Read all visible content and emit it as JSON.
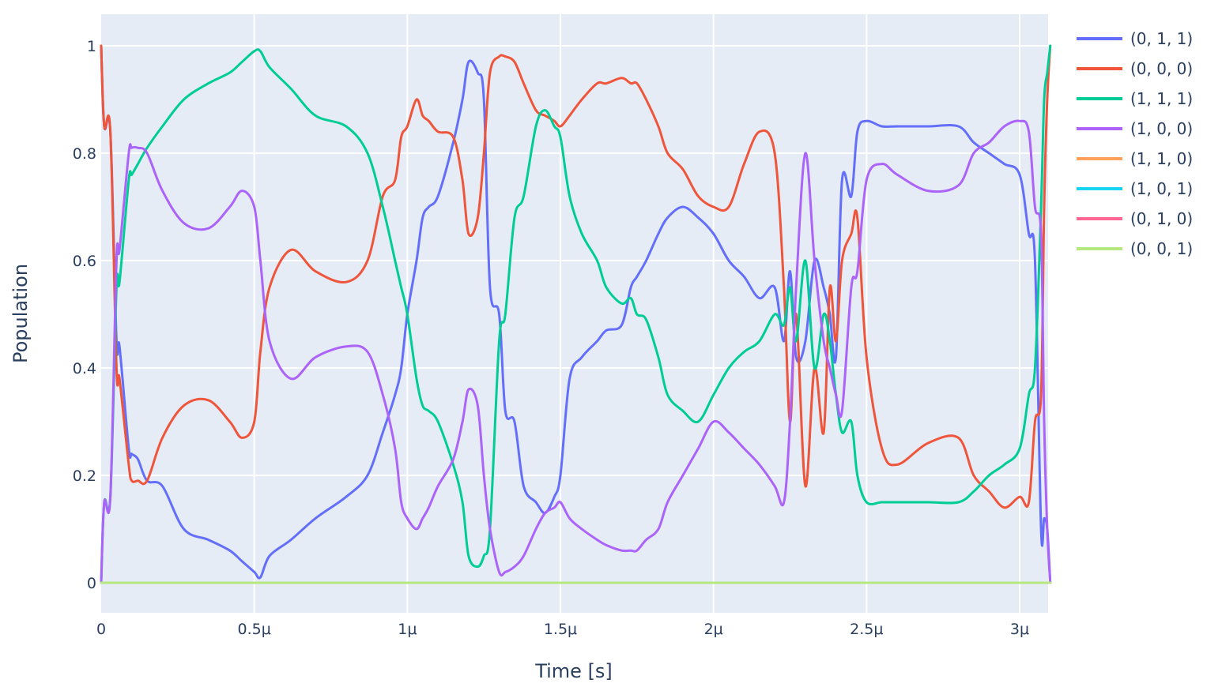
{
  "chart_data": {
    "type": "line",
    "xlabel": "Time [s]",
    "ylabel": "Population",
    "xlim": [
      0,
      3.1e-06
    ],
    "ylim": [
      -0.055,
      1.05
    ],
    "x_ticks": [
      {
        "value": 0,
        "label": "0"
      },
      {
        "value": 5e-07,
        "label": "0.5μ"
      },
      {
        "value": 1e-06,
        "label": "1μ"
      },
      {
        "value": 1.5e-06,
        "label": "1.5μ"
      },
      {
        "value": 2e-06,
        "label": "2μ"
      },
      {
        "value": 2.5e-06,
        "label": "2.5μ"
      },
      {
        "value": 3e-06,
        "label": "3μ"
      }
    ],
    "y_ticks": [
      {
        "value": 0,
        "label": "0"
      },
      {
        "value": 0.2,
        "label": "0.2"
      },
      {
        "value": 0.4,
        "label": "0.4"
      },
      {
        "value": 0.6,
        "label": "0.6"
      },
      {
        "value": 0.8,
        "label": "0.8"
      },
      {
        "value": 1,
        "label": "1"
      }
    ],
    "grid": true,
    "legend_position": "right",
    "series": [
      {
        "name": "(0, 1, 1)",
        "color": "#636efa",
        "x_us": [
          0,
          0.01,
          0.03,
          0.05,
          0.06,
          0.09,
          0.1,
          0.12,
          0.15,
          0.2,
          0.27,
          0.35,
          0.42,
          0.46,
          0.5,
          0.52,
          0.55,
          0.62,
          0.7,
          0.8,
          0.87,
          0.92,
          0.96,
          0.98,
          1.0,
          1.03,
          1.05,
          1.07,
          1.1,
          1.15,
          1.18,
          1.2,
          1.23,
          1.25,
          1.27,
          1.3,
          1.32,
          1.35,
          1.38,
          1.42,
          1.45,
          1.48,
          1.5,
          1.53,
          1.57,
          1.62,
          1.65,
          1.7,
          1.73,
          1.75,
          1.78,
          1.82,
          1.85,
          1.9,
          1.95,
          2.0,
          2.05,
          2.1,
          2.15,
          2.2,
          2.23,
          2.25,
          2.27,
          2.3,
          2.33,
          2.36,
          2.38,
          2.4,
          2.42,
          2.45,
          2.47,
          2.5,
          2.55,
          2.6,
          2.7,
          2.8,
          2.85,
          2.9,
          2.95,
          3.0,
          3.03,
          3.05,
          3.07,
          3.08,
          3.09,
          3.1
        ],
        "y": [
          1.0,
          0.85,
          0.84,
          0.45,
          0.44,
          0.25,
          0.24,
          0.23,
          0.19,
          0.18,
          0.1,
          0.08,
          0.06,
          0.04,
          0.02,
          0.01,
          0.05,
          0.08,
          0.12,
          0.16,
          0.2,
          0.28,
          0.35,
          0.4,
          0.5,
          0.6,
          0.68,
          0.7,
          0.72,
          0.82,
          0.9,
          0.97,
          0.95,
          0.9,
          0.55,
          0.5,
          0.32,
          0.3,
          0.18,
          0.15,
          0.13,
          0.16,
          0.2,
          0.38,
          0.42,
          0.45,
          0.47,
          0.48,
          0.55,
          0.57,
          0.6,
          0.65,
          0.68,
          0.7,
          0.68,
          0.65,
          0.6,
          0.57,
          0.53,
          0.55,
          0.45,
          0.58,
          0.42,
          0.45,
          0.6,
          0.55,
          0.5,
          0.42,
          0.75,
          0.72,
          0.84,
          0.86,
          0.85,
          0.85,
          0.85,
          0.85,
          0.82,
          0.8,
          0.78,
          0.76,
          0.65,
          0.6,
          0.1,
          0.12,
          0.1,
          0.0
        ]
      },
      {
        "name": "(0, 0, 0)",
        "color": "#ef553b",
        "x_us": [
          0,
          0.01,
          0.03,
          0.05,
          0.06,
          0.09,
          0.1,
          0.12,
          0.15,
          0.2,
          0.27,
          0.35,
          0.42,
          0.46,
          0.5,
          0.52,
          0.55,
          0.62,
          0.7,
          0.8,
          0.87,
          0.92,
          0.96,
          0.98,
          1.0,
          1.03,
          1.05,
          1.07,
          1.1,
          1.15,
          1.18,
          1.2,
          1.23,
          1.25,
          1.27,
          1.3,
          1.32,
          1.35,
          1.38,
          1.42,
          1.45,
          1.48,
          1.5,
          1.53,
          1.57,
          1.62,
          1.65,
          1.7,
          1.73,
          1.75,
          1.78,
          1.82,
          1.85,
          1.9,
          1.95,
          2.0,
          2.05,
          2.1,
          2.15,
          2.2,
          2.23,
          2.25,
          2.27,
          2.3,
          2.33,
          2.36,
          2.38,
          2.4,
          2.42,
          2.45,
          2.47,
          2.5,
          2.55,
          2.6,
          2.7,
          2.8,
          2.85,
          2.9,
          2.95,
          3.0,
          3.03,
          3.05,
          3.07,
          3.08,
          3.09,
          3.1
        ],
        "y": [
          1.0,
          0.85,
          0.84,
          0.4,
          0.38,
          0.22,
          0.19,
          0.19,
          0.19,
          0.27,
          0.33,
          0.34,
          0.3,
          0.27,
          0.3,
          0.43,
          0.55,
          0.62,
          0.58,
          0.56,
          0.6,
          0.72,
          0.75,
          0.83,
          0.85,
          0.9,
          0.87,
          0.86,
          0.84,
          0.83,
          0.75,
          0.65,
          0.68,
          0.8,
          0.95,
          0.98,
          0.98,
          0.97,
          0.93,
          0.88,
          0.87,
          0.86,
          0.85,
          0.87,
          0.9,
          0.93,
          0.93,
          0.94,
          0.93,
          0.93,
          0.9,
          0.85,
          0.8,
          0.77,
          0.72,
          0.7,
          0.7,
          0.78,
          0.84,
          0.8,
          0.55,
          0.3,
          0.5,
          0.18,
          0.4,
          0.28,
          0.55,
          0.45,
          0.6,
          0.65,
          0.68,
          0.42,
          0.25,
          0.22,
          0.26,
          0.27,
          0.2,
          0.17,
          0.14,
          0.16,
          0.15,
          0.3,
          0.35,
          0.7,
          0.9,
          1.0
        ]
      },
      {
        "name": "(1, 1, 1)",
        "color": "#00cc96",
        "x_us": [
          0,
          0.01,
          0.03,
          0.05,
          0.06,
          0.09,
          0.1,
          0.12,
          0.15,
          0.2,
          0.27,
          0.35,
          0.42,
          0.46,
          0.5,
          0.52,
          0.55,
          0.62,
          0.7,
          0.8,
          0.87,
          0.92,
          0.96,
          0.98,
          1.0,
          1.03,
          1.05,
          1.07,
          1.1,
          1.15,
          1.18,
          1.2,
          1.23,
          1.25,
          1.27,
          1.3,
          1.32,
          1.35,
          1.38,
          1.42,
          1.45,
          1.48,
          1.5,
          1.53,
          1.57,
          1.62,
          1.65,
          1.7,
          1.73,
          1.75,
          1.78,
          1.82,
          1.85,
          1.9,
          1.95,
          2.0,
          2.05,
          2.1,
          2.15,
          2.2,
          2.23,
          2.25,
          2.27,
          2.3,
          2.33,
          2.36,
          2.38,
          2.4,
          2.42,
          2.45,
          2.47,
          2.5,
          2.55,
          2.6,
          2.7,
          2.8,
          2.85,
          2.9,
          2.95,
          3.0,
          3.03,
          3.05,
          3.07,
          3.08,
          3.09,
          3.1
        ],
        "y": [
          0.0,
          0.15,
          0.16,
          0.55,
          0.56,
          0.75,
          0.76,
          0.78,
          0.81,
          0.85,
          0.9,
          0.93,
          0.95,
          0.97,
          0.99,
          0.99,
          0.96,
          0.92,
          0.87,
          0.85,
          0.8,
          0.7,
          0.6,
          0.55,
          0.5,
          0.38,
          0.33,
          0.32,
          0.3,
          0.22,
          0.15,
          0.05,
          0.03,
          0.05,
          0.1,
          0.45,
          0.5,
          0.68,
          0.72,
          0.85,
          0.88,
          0.85,
          0.83,
          0.72,
          0.65,
          0.6,
          0.55,
          0.52,
          0.53,
          0.5,
          0.49,
          0.42,
          0.35,
          0.32,
          0.3,
          0.35,
          0.4,
          0.43,
          0.45,
          0.5,
          0.48,
          0.55,
          0.45,
          0.6,
          0.4,
          0.5,
          0.45,
          0.35,
          0.28,
          0.3,
          0.2,
          0.15,
          0.15,
          0.15,
          0.15,
          0.15,
          0.17,
          0.2,
          0.22,
          0.25,
          0.35,
          0.4,
          0.7,
          0.9,
          0.95,
          1.0
        ]
      },
      {
        "name": "(1, 0, 0)",
        "color": "#ab63fa",
        "x_us": [
          0,
          0.01,
          0.03,
          0.05,
          0.06,
          0.09,
          0.1,
          0.12,
          0.15,
          0.2,
          0.27,
          0.35,
          0.42,
          0.46,
          0.5,
          0.52,
          0.55,
          0.62,
          0.7,
          0.8,
          0.87,
          0.92,
          0.96,
          0.98,
          1.0,
          1.03,
          1.05,
          1.07,
          1.1,
          1.15,
          1.18,
          1.2,
          1.23,
          1.25,
          1.27,
          1.3,
          1.32,
          1.35,
          1.38,
          1.42,
          1.45,
          1.48,
          1.5,
          1.53,
          1.57,
          1.62,
          1.65,
          1.7,
          1.73,
          1.75,
          1.78,
          1.82,
          1.85,
          1.9,
          1.95,
          2.0,
          2.05,
          2.1,
          2.15,
          2.2,
          2.23,
          2.25,
          2.27,
          2.3,
          2.33,
          2.36,
          2.38,
          2.4,
          2.42,
          2.45,
          2.47,
          2.5,
          2.55,
          2.6,
          2.7,
          2.8,
          2.85,
          2.9,
          2.95,
          3.0,
          3.03,
          3.05,
          3.07,
          3.08,
          3.09,
          3.1
        ],
        "y": [
          0.0,
          0.15,
          0.16,
          0.6,
          0.62,
          0.8,
          0.81,
          0.81,
          0.8,
          0.73,
          0.67,
          0.66,
          0.7,
          0.73,
          0.7,
          0.6,
          0.45,
          0.38,
          0.42,
          0.44,
          0.43,
          0.35,
          0.25,
          0.15,
          0.12,
          0.1,
          0.12,
          0.14,
          0.18,
          0.23,
          0.3,
          0.36,
          0.33,
          0.2,
          0.1,
          0.02,
          0.02,
          0.03,
          0.05,
          0.1,
          0.13,
          0.14,
          0.15,
          0.12,
          0.1,
          0.08,
          0.07,
          0.06,
          0.06,
          0.06,
          0.08,
          0.1,
          0.15,
          0.2,
          0.25,
          0.3,
          0.28,
          0.25,
          0.22,
          0.18,
          0.15,
          0.3,
          0.55,
          0.8,
          0.6,
          0.45,
          0.4,
          0.35,
          0.32,
          0.55,
          0.58,
          0.75,
          0.78,
          0.76,
          0.73,
          0.74,
          0.8,
          0.82,
          0.85,
          0.86,
          0.84,
          0.7,
          0.65,
          0.3,
          0.1,
          0.0
        ]
      },
      {
        "name": "(1, 1, 0)",
        "color": "#ffa15a",
        "x_us": [
          0,
          3.1
        ],
        "y": [
          0,
          0
        ]
      },
      {
        "name": "(1, 0, 1)",
        "color": "#19d3f3",
        "x_us": [
          0,
          3.1
        ],
        "y": [
          0,
          0
        ]
      },
      {
        "name": "(0, 1, 0)",
        "color": "#ff6692",
        "x_us": [
          0,
          3.1
        ],
        "y": [
          0,
          0
        ]
      },
      {
        "name": "(0, 0, 1)",
        "color": "#b6e880",
        "x_us": [
          0,
          3.1
        ],
        "y": [
          0,
          0
        ]
      }
    ]
  }
}
